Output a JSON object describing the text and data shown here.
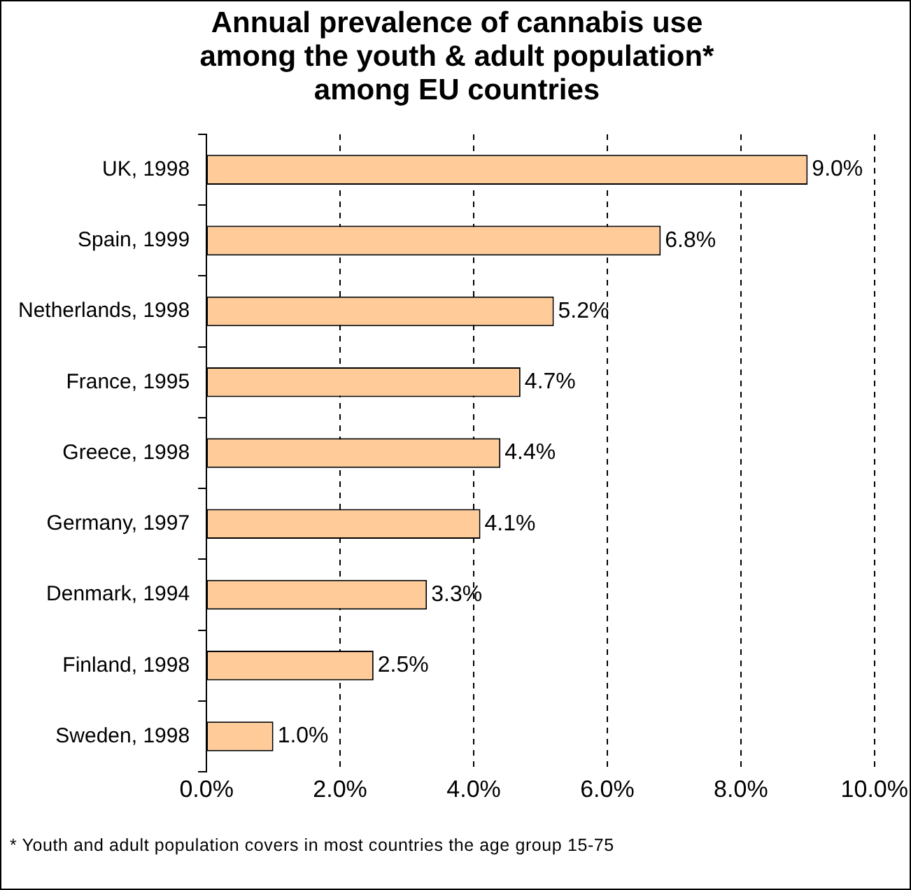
{
  "chart_data": {
    "type": "bar",
    "orientation": "horizontal",
    "title": "Annual prevalence of cannabis use\namong the youth & adult population*\namong EU countries",
    "categories": [
      "UK, 1998",
      "Spain, 1999",
      "Netherlands, 1998",
      "France, 1995",
      "Greece, 1998",
      "Germany, 1997",
      "Denmark, 1994",
      "Finland, 1998",
      "Sweden, 1998"
    ],
    "values": [
      9.0,
      6.8,
      5.2,
      4.7,
      4.4,
      4.1,
      3.3,
      2.5,
      1.0
    ],
    "value_labels": [
      "9.0%",
      "6.8%",
      "5.2%",
      "4.7%",
      "4.4%",
      "4.1%",
      "3.3%",
      "2.5%",
      "1.0%"
    ],
    "color": "#ffcc99",
    "xlim": [
      0,
      10
    ],
    "xticks": [
      {
        "value": 0,
        "label": "0.0%"
      },
      {
        "value": 2,
        "label": "2.0%"
      },
      {
        "value": 4,
        "label": "4.0%"
      },
      {
        "value": 6,
        "label": "6.0%"
      },
      {
        "value": 8,
        "label": "8.0%"
      },
      {
        "value": 10,
        "label": "10.0%"
      }
    ],
    "grid": "x",
    "line_style": "dashed",
    "legend": false,
    "annotations": [
      "* Youth and adult population covers in most countries the age group 15-75"
    ]
  }
}
